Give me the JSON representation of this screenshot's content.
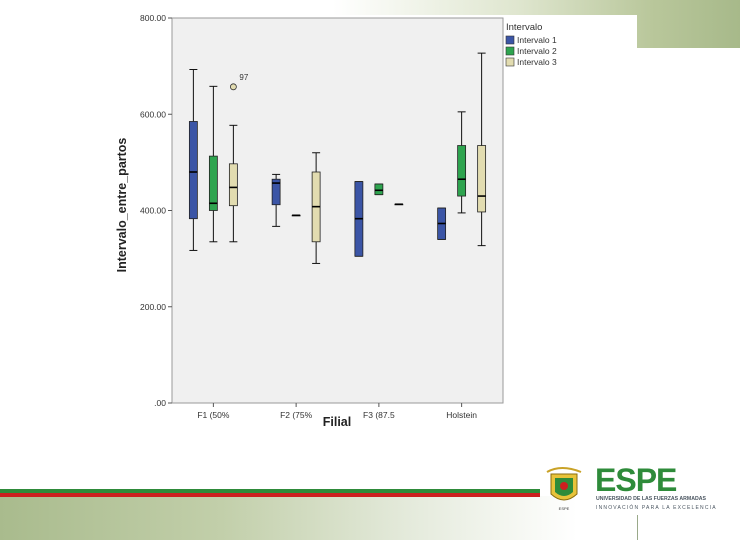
{
  "logo": {
    "wordmark": "ESPE",
    "line1": "UNIVERSIDAD DE LAS FUERZAS ARMADAS",
    "line2": "INNOVACIÓN PARA LA EXCELENCIA"
  },
  "colors": {
    "series": [
      "#3b55a6",
      "#2ea44f",
      "#e2dcb0"
    ],
    "stripe_green": "#2e8b3a",
    "stripe_red": "#cc1f1f",
    "logo_green": "#2e8b3a",
    "logo_gray": "#4a5560"
  },
  "chart_data": {
    "type": "boxplot",
    "title": "",
    "xlabel": "Filial",
    "ylabel": "Intervalo_entre_partos",
    "ylim": [
      0,
      800
    ],
    "yticks": [
      0,
      200,
      400,
      600,
      800
    ],
    "ytick_labels": [
      ".00",
      "200.00",
      "400.00",
      "600.00",
      "800.00"
    ],
    "categories": [
      "F1 (50%",
      "F2 (75%",
      "F3 (87.5",
      "Holstein"
    ],
    "legend": {
      "title": "Intervalo",
      "position": "top-right"
    },
    "grid": false,
    "series": [
      {
        "name": "Intervalo 1",
        "boxes": [
          {
            "min": 317,
            "q1": 383,
            "median": 480,
            "q3": 585,
            "max": 693
          },
          {
            "min": 367,
            "q1": 412,
            "median": 457,
            "q3": 465,
            "max": 475
          },
          {
            "min": 305,
            "q1": 305,
            "median": 383,
            "q3": 460,
            "max": 460
          },
          {
            "min": 340,
            "q1": 340,
            "median": 373,
            "q3": 405,
            "max": 405
          }
        ]
      },
      {
        "name": "Intervalo 2",
        "boxes": [
          {
            "min": 335,
            "q1": 400,
            "median": 415,
            "q3": 513,
            "max": 658
          },
          {
            "min": 390,
            "q1": 390,
            "median": 390,
            "q3": 390,
            "max": 390
          },
          {
            "min": 433,
            "q1": 433,
            "median": 442,
            "q3": 455,
            "max": 455
          },
          {
            "min": 395,
            "q1": 430,
            "median": 465,
            "q3": 535,
            "max": 605
          }
        ]
      },
      {
        "name": "Intervalo 3",
        "boxes": [
          {
            "min": 335,
            "q1": 410,
            "median": 448,
            "q3": 497,
            "max": 577
          },
          {
            "min": 290,
            "q1": 335,
            "median": 408,
            "q3": 480,
            "max": 520
          },
          {
            "min": 413,
            "q1": 413,
            "median": 413,
            "q3": 413,
            "max": 413
          },
          {
            "min": 327,
            "q1": 397,
            "median": 430,
            "q3": 535,
            "max": 727
          }
        ]
      }
    ],
    "outliers": [
      {
        "category": "F1 (50%",
        "series": "Intervalo 3",
        "value": 657,
        "label": "97"
      }
    ]
  }
}
